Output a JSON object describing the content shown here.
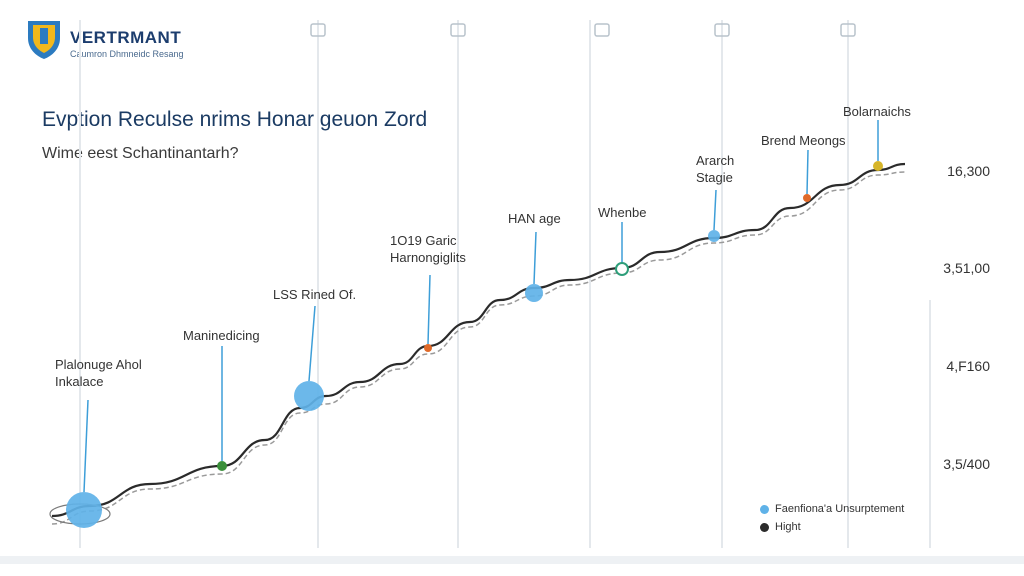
{
  "header": {
    "brand": "VERTRMANT",
    "tagline": "Caumron Dhmneidc Resang"
  },
  "colors": {
    "line": "#2b2b2b",
    "dashed": "#9a9a9a",
    "accent_blue": "#5fb2e8",
    "stem": "#3d9ed8",
    "grid": "#e4e8ec"
  },
  "chart_data": {
    "type": "line",
    "title": "Evption Reculse nrims Honar geuon Zord",
    "subtitle": "Wime eest Schantinantarh?",
    "ytick_labels": [
      "16,300",
      "3,51,00",
      "4,F160",
      "3,5/400"
    ],
    "legend": [
      {
        "label": "Faenfiona'a Unsurptement",
        "color": "#5fb2e8"
      },
      {
        "label": "Hight",
        "color": "#2b2b2b"
      }
    ],
    "annotations": [
      {
        "lines": [
          "Plalonuge Ahol",
          "Inkalace"
        ],
        "marker": "circle-large",
        "color": "#5fb2e8"
      },
      {
        "lines": [
          "Maninedicing"
        ],
        "marker": "dot",
        "color": "#3a8f3a"
      },
      {
        "lines": [
          "LSS Rined Of."
        ],
        "marker": "circle-large",
        "color": "#5fb2e8"
      },
      {
        "lines": [
          "1O19 Garic",
          "Harnongiglits"
        ],
        "marker": "dot",
        "color": "#e06a2a"
      },
      {
        "lines": [
          "HAN age"
        ],
        "marker": "circle",
        "color": "#5fb2e8"
      },
      {
        "lines": [
          "Whenbe"
        ],
        "marker": "ring",
        "color": "#2e9e7a"
      },
      {
        "lines": [
          "Ararch",
          "Stagie"
        ],
        "marker": "circle-small",
        "color": "#5fb2e8"
      },
      {
        "lines": [
          "Brend Meongs"
        ],
        "marker": "dot",
        "color": "#e06a2a"
      },
      {
        "lines": [
          "Bolarnaichs"
        ],
        "marker": "dot",
        "color": "#d6b52a"
      }
    ]
  }
}
